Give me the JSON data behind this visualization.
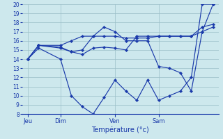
{
  "xlabel": "Température (°c)",
  "ylim": [
    8,
    20
  ],
  "yticks": [
    8,
    9,
    10,
    11,
    12,
    13,
    14,
    15,
    16,
    17,
    18,
    19,
    20
  ],
  "background_color": "#cde8ed",
  "line_color": "#1a3aaa",
  "grid_color": "#9bbfc8",
  "xtick_labels": [
    "Jeu",
    "Dim",
    "Ven",
    "Sam"
  ],
  "xtick_positions": [
    1,
    4,
    9,
    13
  ],
  "xlim": [
    0.5,
    18.5
  ],
  "series": [
    {
      "x": [
        1,
        2,
        4,
        5,
        6,
        7,
        8,
        9,
        10,
        11,
        12,
        13,
        14,
        15,
        16,
        17,
        18
      ],
      "y": [
        14,
        15.2,
        14,
        10,
        8.8,
        8,
        9.8,
        11.7,
        10.5,
        9.5,
        11.7,
        9.5,
        10.0,
        10.5,
        12,
        20,
        20
      ]
    },
    {
      "x": [
        1,
        2,
        4,
        5,
        6,
        7,
        8,
        9,
        10,
        11,
        12,
        13,
        14,
        15,
        16,
        17,
        18
      ],
      "y": [
        14,
        15.5,
        15.5,
        16,
        16.5,
        16.5,
        16.5,
        16.5,
        16.3,
        16.3,
        16.3,
        16.5,
        16.5,
        16.5,
        16.5,
        17.0,
        17.5
      ]
    },
    {
      "x": [
        1,
        2,
        4,
        5,
        6,
        7,
        8,
        9,
        10,
        11,
        12,
        13,
        14,
        15,
        16,
        17,
        18
      ],
      "y": [
        14,
        15.5,
        15.3,
        14.8,
        15.0,
        16.5,
        17.5,
        17.0,
        16.0,
        16.0,
        16.0,
        13.2,
        13.0,
        12.5,
        10.5,
        17.0,
        20
      ]
    },
    {
      "x": [
        1,
        2,
        4,
        5,
        6,
        7,
        8,
        9,
        10,
        11,
        12,
        13,
        14,
        15,
        16,
        17,
        18
      ],
      "y": [
        14,
        15.5,
        15.2,
        14.8,
        14.5,
        15.2,
        15.3,
        15.2,
        15.0,
        16.5,
        16.5,
        16.5,
        16.5,
        16.5,
        16.5,
        17.5,
        17.8
      ]
    }
  ]
}
